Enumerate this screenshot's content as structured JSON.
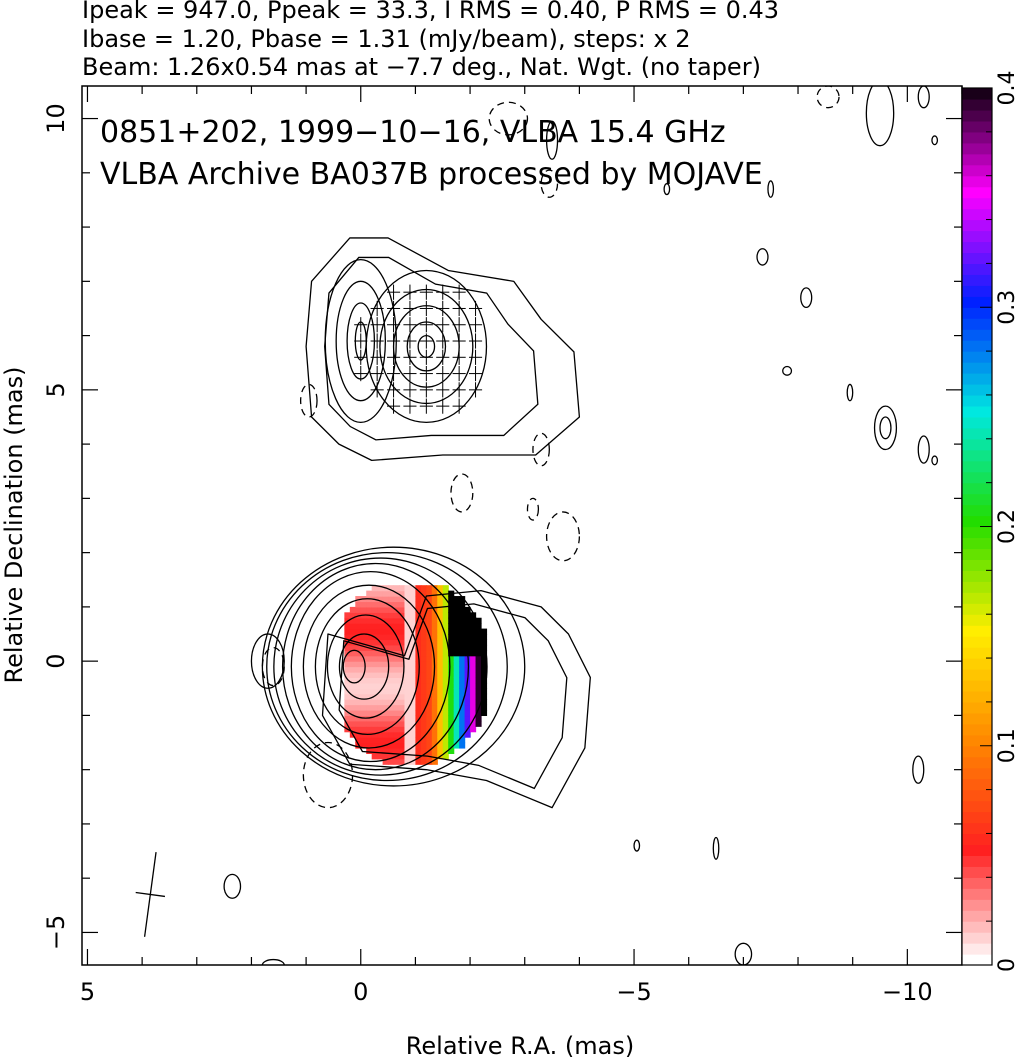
{
  "header": {
    "line1": "Ipeak = 947.0, Ppeak = 33.3, I RMS = 0.40, P RMS = 0.43",
    "line2": "Ibase = 1.20, Pbase = 1.31 (mJy/beam), steps: x 2",
    "line3": "Beam: 1.26x0.54 mas at −7.7 deg., Nat. Wgt. (no taper)"
  },
  "chart_data": {
    "type": "heatmap",
    "title_line1": "0851+202, 1999−10−16, VLBA 15.4 GHz",
    "title_line2": "VLBA Archive BA037B processed by MOJAVE",
    "xlabel": "Relative R.A. (mas)",
    "ylabel": "Relative Declination (mas)",
    "xlim": [
      5.1,
      -11.0
    ],
    "ylim": [
      -5.6,
      10.6
    ],
    "x_ticks": [
      5,
      0,
      -5,
      -10
    ],
    "x_tick_labels": [
      "5",
      "0",
      "−5",
      "−10"
    ],
    "y_ticks": [
      -5,
      0,
      5,
      10
    ],
    "y_tick_labels": [
      "−5",
      "0",
      "5",
      "10"
    ],
    "colorbar": {
      "range": [
        0,
        0.4
      ],
      "ticks": [
        0,
        0.1,
        0.2,
        0.3,
        0.4
      ],
      "tick_labels": [
        "0",
        "0.1",
        "0.2",
        "0.3",
        "0.4"
      ],
      "stops": [
        "#ffffff",
        "#ff2020",
        "#ff8800",
        "#ffee00",
        "#22dd00",
        "#00e8e0",
        "#0020ff",
        "#ff00ff",
        "#000000"
      ]
    },
    "core": {
      "center": [
        0.0,
        -0.1
      ],
      "contours": [
        {
          "dx": [
            -0.2,
            0.1,
            0.15,
            0.2,
            0.25,
            0.3,
            0.45,
            0.6,
            0.8,
            1.0
          ],
          "rx": [
            0.2,
            0.45,
            0.7,
            0.95,
            1.2,
            1.45,
            1.7,
            1.95,
            2.2,
            2.4
          ],
          "ry": [
            0.3,
            0.6,
            0.95,
            1.25,
            1.5,
            1.75,
            1.9,
            2.0,
            2.1,
            2.2
          ]
        }
      ],
      "outer_extension": [
        [
          -0.8,
          0.1
        ],
        [
          -1.2,
          1.2
        ],
        [
          -2.2,
          1.3
        ],
        [
          -3.3,
          1.0
        ],
        [
          -3.8,
          0.5
        ],
        [
          -4.2,
          -0.3
        ],
        [
          -4.1,
          -1.6
        ],
        [
          -3.5,
          -2.7
        ],
        [
          -2.3,
          -2.2
        ],
        [
          -1.2,
          -2.0
        ],
        [
          0.2,
          -1.9
        ],
        [
          0.7,
          -1.0
        ],
        [
          0.6,
          0.5
        ]
      ],
      "negative_contours": [
        {
          "cx": 0.6,
          "cy": -2.1,
          "rx": 0.45,
          "ry": 0.6
        },
        {
          "cx": 1.6,
          "cy": -0.1,
          "rx": 0.2,
          "ry": 0.35
        }
      ],
      "outlier_contours": [
        {
          "cx": 1.7,
          "cy": 0.0,
          "rx": 0.3,
          "ry": 0.5
        }
      ]
    },
    "upper_knot": {
      "center": [
        0.0,
        5.9
      ],
      "second_peak": [
        -1.2,
        5.8
      ],
      "envelope": [
        [
          1.0,
          5.8
        ],
        [
          0.9,
          7.0
        ],
        [
          0.2,
          7.8
        ],
        [
          -0.5,
          7.8
        ],
        [
          -1.6,
          7.2
        ],
        [
          -2.8,
          7.0
        ],
        [
          -3.3,
          6.3
        ],
        [
          -3.9,
          5.7
        ],
        [
          -4.0,
          4.5
        ],
        [
          -3.2,
          3.8
        ],
        [
          -1.5,
          3.8
        ],
        [
          -0.2,
          3.7
        ],
        [
          0.4,
          4.0
        ],
        [
          0.9,
          4.5
        ]
      ],
      "contours_a": {
        "rx": [
          0.1,
          0.25,
          0.45,
          0.65
        ],
        "ry": [
          0.35,
          0.7,
          1.1,
          1.5
        ]
      },
      "contours_b": {
        "rx": [
          0.15,
          0.35,
          0.6,
          0.85,
          1.1
        ],
        "ry": [
          0.2,
          0.45,
          0.75,
          1.05,
          1.4
        ]
      }
    },
    "noise_contours": [
      {
        "x": -2.7,
        "y": 10.0,
        "rx": 0.35,
        "ry": 0.3,
        "dashed": true
      },
      {
        "x": -3.5,
        "y": 9.6,
        "rx": 0.1,
        "ry": 0.35,
        "dashed": false
      },
      {
        "x": -3.45,
        "y": 8.8,
        "rx": 0.15,
        "ry": 0.25,
        "dashed": true
      },
      {
        "x": -5.6,
        "y": 8.7,
        "rx": 0.05,
        "ry": 0.1,
        "dashed": false
      },
      {
        "x": -7.5,
        "y": 8.7,
        "rx": 0.05,
        "ry": 0.15,
        "dashed": false
      },
      {
        "x": -7.35,
        "y": 7.45,
        "rx": 0.1,
        "ry": 0.15,
        "dashed": false
      },
      {
        "x": -8.15,
        "y": 6.7,
        "rx": 0.1,
        "ry": 0.18,
        "dashed": false
      },
      {
        "x": -8.55,
        "y": 10.4,
        "rx": 0.2,
        "ry": 0.2,
        "dashed": true
      },
      {
        "x": -9.5,
        "y": 10.1,
        "rx": 0.25,
        "ry": 0.6,
        "dashed": false
      },
      {
        "x": -10.3,
        "y": 10.4,
        "rx": 0.1,
        "ry": 0.2,
        "dashed": false
      },
      {
        "x": -10.5,
        "y": 9.6,
        "rx": 0.05,
        "ry": 0.08,
        "dashed": false
      },
      {
        "x": -7.8,
        "y": 5.35,
        "rx": 0.08,
        "ry": 0.08,
        "dashed": false
      },
      {
        "x": -8.95,
        "y": 4.95,
        "rx": 0.05,
        "ry": 0.15,
        "dashed": false
      },
      {
        "x": -9.6,
        "y": 4.3,
        "rx": 0.2,
        "ry": 0.4,
        "dashed": false
      },
      {
        "x": -9.6,
        "y": 4.3,
        "rx": 0.1,
        "ry": 0.2,
        "dashed": false
      },
      {
        "x": -10.3,
        "y": 3.9,
        "rx": 0.1,
        "ry": 0.25,
        "dashed": false
      },
      {
        "x": -10.5,
        "y": 3.7,
        "rx": 0.05,
        "ry": 0.08,
        "dashed": false
      },
      {
        "x": 0.95,
        "y": 4.8,
        "rx": 0.15,
        "ry": 0.3,
        "dashed": true
      },
      {
        "x": -3.3,
        "y": 3.9,
        "rx": 0.15,
        "ry": 0.3,
        "dashed": true
      },
      {
        "x": -1.85,
        "y": 3.1,
        "rx": 0.2,
        "ry": 0.35,
        "dashed": true
      },
      {
        "x": -3.15,
        "y": 2.8,
        "rx": 0.1,
        "ry": 0.2,
        "dashed": true
      },
      {
        "x": -3.7,
        "y": 2.3,
        "rx": 0.3,
        "ry": 0.45,
        "dashed": true
      },
      {
        "x": -10.2,
        "y": -2.0,
        "rx": 0.1,
        "ry": 0.25,
        "dashed": false
      },
      {
        "x": -5.05,
        "y": -3.4,
        "rx": 0.05,
        "ry": 0.1,
        "dashed": false
      },
      {
        "x": -6.5,
        "y": -3.45,
        "rx": 0.05,
        "ry": 0.2,
        "dashed": false
      },
      {
        "x": 2.35,
        "y": -4.15,
        "rx": 0.15,
        "ry": 0.22,
        "dashed": false
      },
      {
        "x": -7.0,
        "y": -5.4,
        "rx": 0.15,
        "ry": 0.2,
        "dashed": false
      },
      {
        "x": 1.6,
        "y": -5.6,
        "rx": 0.2,
        "ry": 0.1,
        "dashed": false
      }
    ],
    "beam": {
      "x": 3.85,
      "y": -4.3,
      "major": 1.26,
      "minor": 0.54,
      "pa_deg": -7.7
    },
    "polarization": {
      "region_core": {
        "x_from": 0.3,
        "x_to": -2.25,
        "y_from": -2.1,
        "y_to": 1.4
      },
      "core_ticks_x": [
        0.2,
        -0.0,
        -0.3,
        -0.6,
        -0.9,
        -1.2,
        -1.5,
        -1.8,
        -2.1
      ],
      "upper_ticks_x": [
        0.25,
        0.0,
        -0.3,
        -0.6,
        -0.9,
        -1.2,
        -1.5,
        -1.8,
        -2.1
      ],
      "upper_ticks_y": [
        6.8,
        6.5,
        6.2,
        5.9,
        5.6,
        5.3,
        5.0,
        4.7
      ]
    }
  }
}
